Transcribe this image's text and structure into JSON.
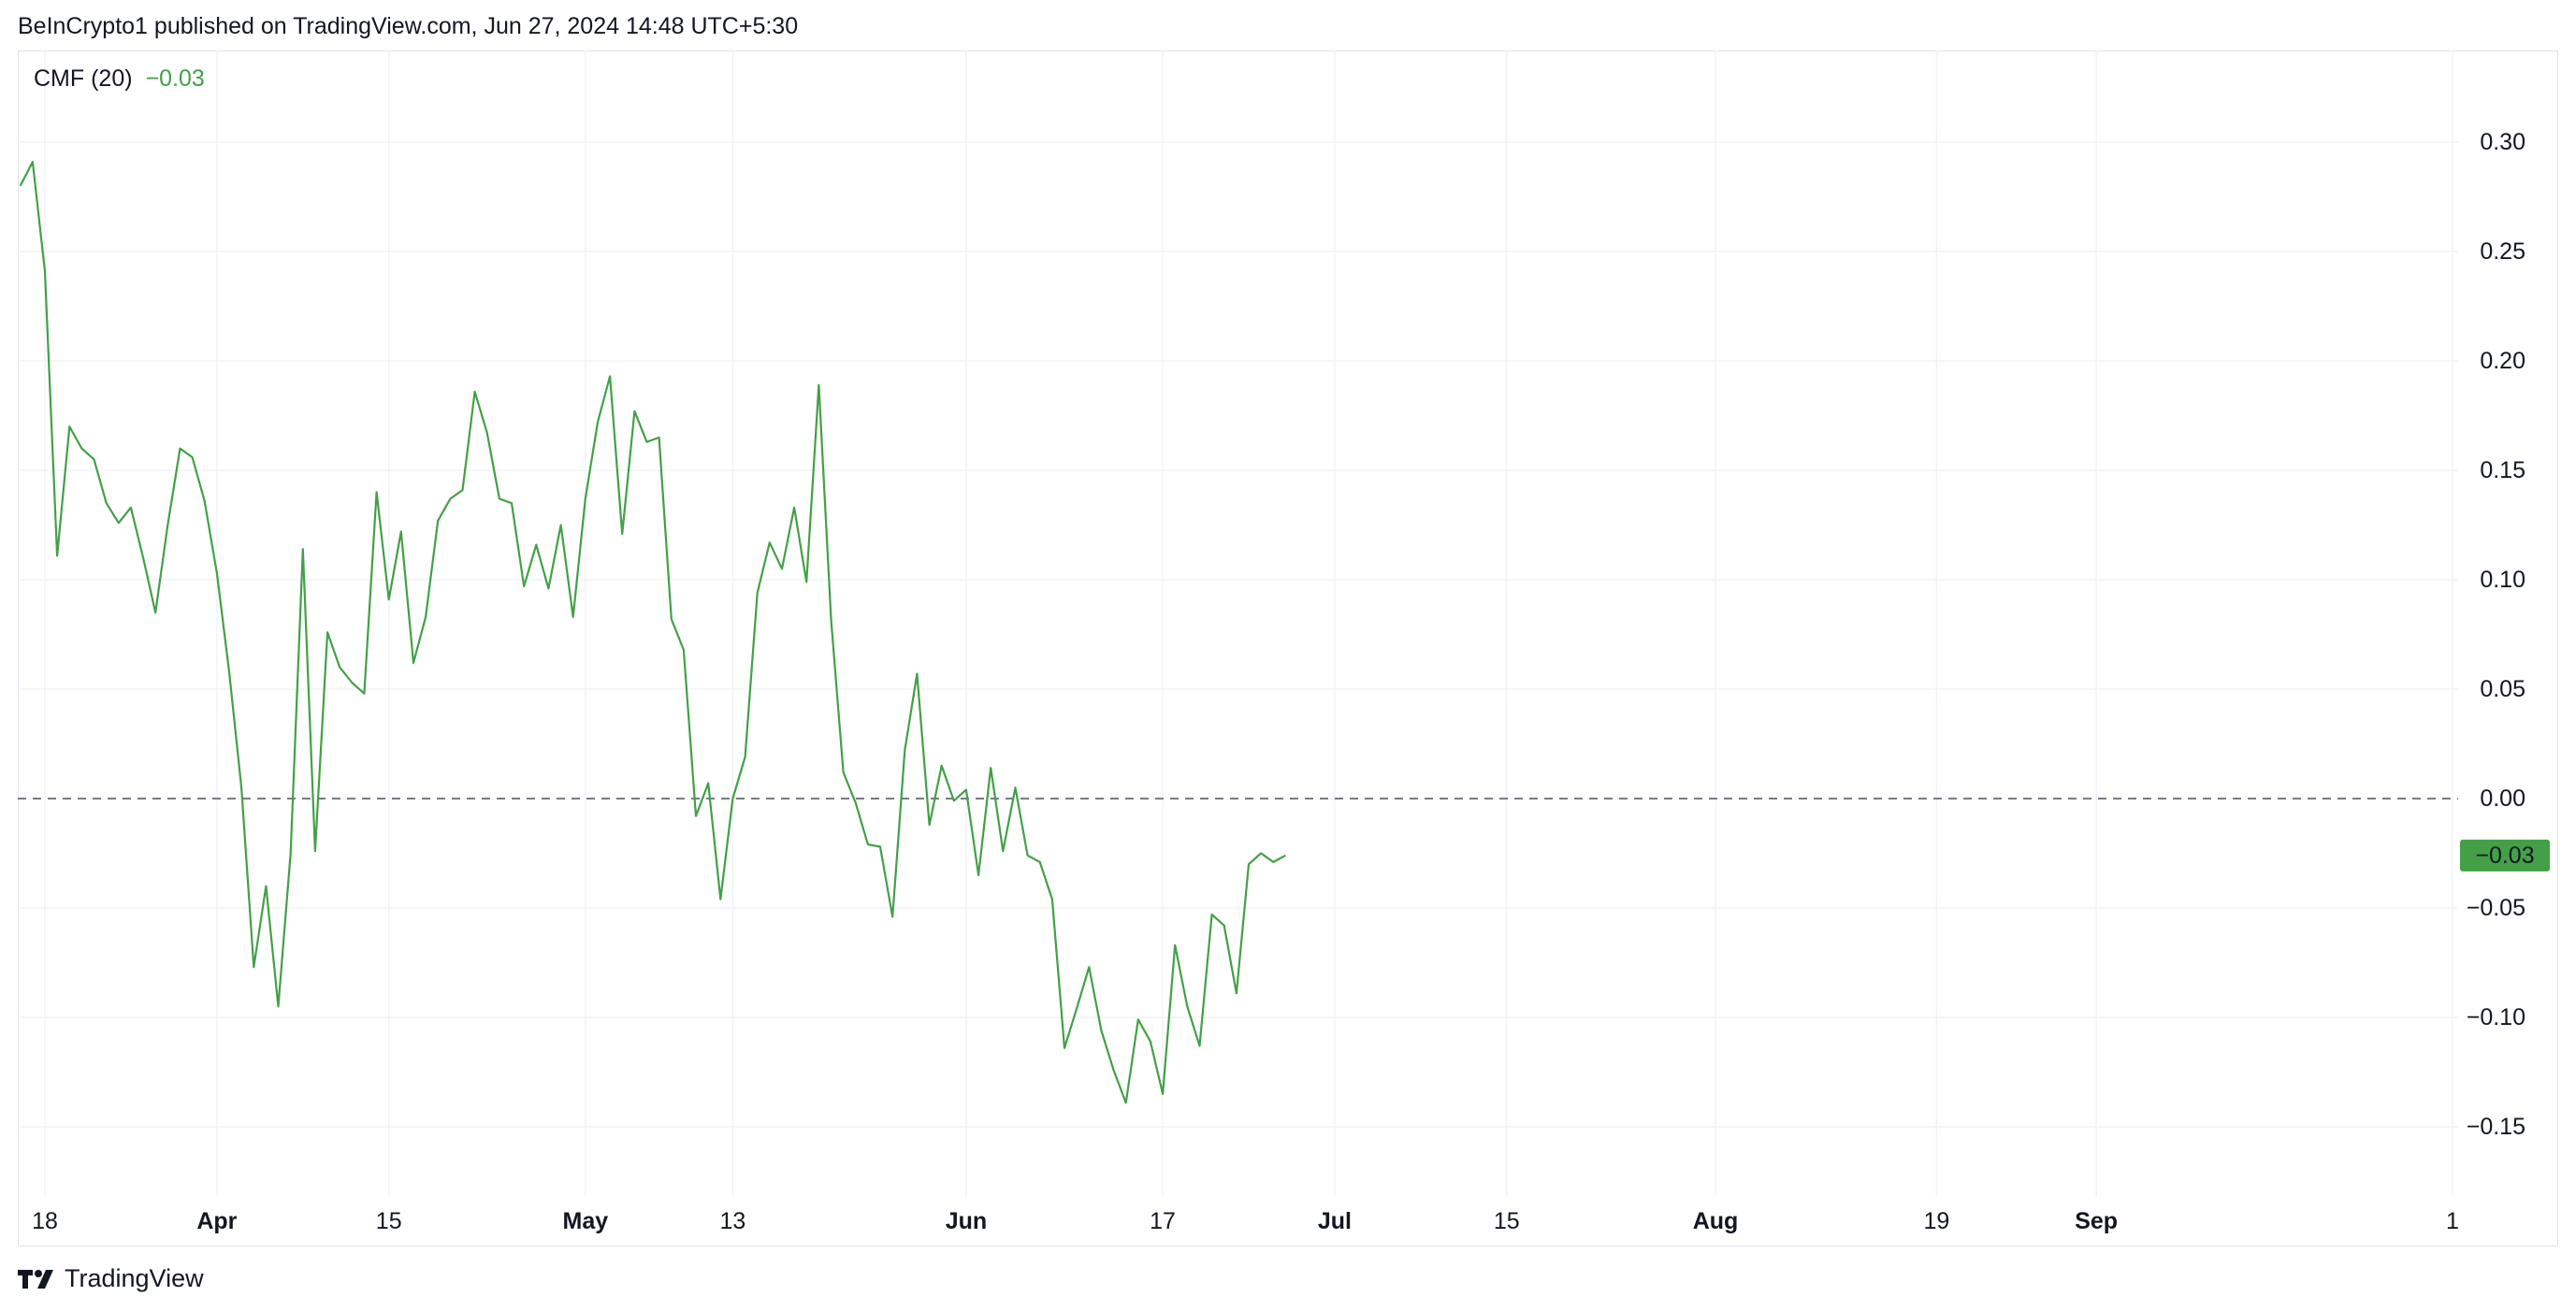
{
  "header": {
    "published": "BeInCrypto1 published on TradingView.com, Jun 27, 2024 14:48 UTC+5:30"
  },
  "indicator": {
    "name": "CMF (20)",
    "value": "−0.03",
    "current_label": "−0.03"
  },
  "footer": {
    "brand": "TradingView"
  },
  "colors": {
    "line": "#43a047",
    "grid": "#f0f3fa",
    "zero_line": "#787b86",
    "badge": "#43a047"
  },
  "chart_data": {
    "type": "line",
    "title": "",
    "xlabel": "",
    "ylabel": "",
    "ylim": [
      -0.18,
      0.33
    ],
    "grid": true,
    "reference_line": 0.0,
    "y_ticks": [
      {
        "value": 0.3,
        "label": "0.30"
      },
      {
        "value": 0.25,
        "label": "0.25"
      },
      {
        "value": 0.2,
        "label": "0.20"
      },
      {
        "value": 0.15,
        "label": "0.15"
      },
      {
        "value": 0.1,
        "label": "0.10"
      },
      {
        "value": 0.05,
        "label": "0.05"
      },
      {
        "value": 0.0,
        "label": "0.00"
      },
      {
        "value": -0.05,
        "label": "−0.05"
      },
      {
        "value": -0.1,
        "label": "−0.10"
      },
      {
        "value": -0.15,
        "label": "−0.15"
      }
    ],
    "x_ticks": [
      {
        "date": "2024-03-18",
        "label": "18",
        "bold": false
      },
      {
        "date": "2024-04-01",
        "label": "Apr",
        "bold": true
      },
      {
        "date": "2024-04-15",
        "label": "15",
        "bold": false
      },
      {
        "date": "2024-05-01",
        "label": "May",
        "bold": true
      },
      {
        "date": "2024-05-13",
        "label": "13",
        "bold": false
      },
      {
        "date": "2024-06-01",
        "label": "Jun",
        "bold": true
      },
      {
        "date": "2024-06-17",
        "label": "17",
        "bold": false
      },
      {
        "date": "2024-07-01",
        "label": "Jul",
        "bold": true
      },
      {
        "date": "2024-07-15",
        "label": "15",
        "bold": false
      },
      {
        "date": "2024-08-01",
        "label": "Aug",
        "bold": true
      },
      {
        "date": "2024-08-19",
        "label": "19",
        "bold": false
      },
      {
        "date": "2024-09-01",
        "label": "Sep",
        "bold": true
      },
      {
        "date": "2024-09-30",
        "label": "1",
        "bold": false
      }
    ],
    "x_range": [
      "2024-03-16",
      "2024-10-01"
    ],
    "series": [
      {
        "values": [
          [
            "2024-03-16",
            0.28
          ],
          [
            "2024-03-17",
            0.291
          ],
          [
            "2024-03-18",
            0.241
          ],
          [
            "2024-03-19",
            0.111
          ],
          [
            "2024-03-20",
            0.17
          ],
          [
            "2024-03-21",
            0.16
          ],
          [
            "2024-03-22",
            0.155
          ],
          [
            "2024-03-23",
            0.135
          ],
          [
            "2024-03-24",
            0.126
          ],
          [
            "2024-03-25",
            0.133
          ],
          [
            "2024-03-26",
            0.11
          ],
          [
            "2024-03-27",
            0.085
          ],
          [
            "2024-03-28",
            0.125
          ],
          [
            "2024-03-29",
            0.16
          ],
          [
            "2024-03-30",
            0.156
          ],
          [
            "2024-03-31",
            0.136
          ],
          [
            "2024-04-01",
            0.103
          ],
          [
            "2024-04-02",
            0.058
          ],
          [
            "2024-04-03",
            0.005
          ],
          [
            "2024-04-04",
            -0.077
          ],
          [
            "2024-04-05",
            -0.04
          ],
          [
            "2024-04-06",
            -0.095
          ],
          [
            "2024-04-07",
            -0.025
          ],
          [
            "2024-04-08",
            0.114
          ],
          [
            "2024-04-09",
            -0.024
          ],
          [
            "2024-04-10",
            0.076
          ],
          [
            "2024-04-11",
            0.06
          ],
          [
            "2024-04-12",
            0.053
          ],
          [
            "2024-04-13",
            0.048
          ],
          [
            "2024-04-14",
            0.14
          ],
          [
            "2024-04-15",
            0.091
          ],
          [
            "2024-04-16",
            0.122
          ],
          [
            "2024-04-17",
            0.062
          ],
          [
            "2024-04-18",
            0.083
          ],
          [
            "2024-04-19",
            0.127
          ],
          [
            "2024-04-20",
            0.137
          ],
          [
            "2024-04-21",
            0.141
          ],
          [
            "2024-04-22",
            0.186
          ],
          [
            "2024-04-23",
            0.167
          ],
          [
            "2024-04-24",
            0.137
          ],
          [
            "2024-04-25",
            0.135
          ],
          [
            "2024-04-26",
            0.097
          ],
          [
            "2024-04-27",
            0.116
          ],
          [
            "2024-04-28",
            0.096
          ],
          [
            "2024-04-29",
            0.125
          ],
          [
            "2024-04-30",
            0.083
          ],
          [
            "2024-05-01",
            0.137
          ],
          [
            "2024-05-02",
            0.172
          ],
          [
            "2024-05-03",
            0.193
          ],
          [
            "2024-05-04",
            0.121
          ],
          [
            "2024-05-05",
            0.177
          ],
          [
            "2024-05-06",
            0.163
          ],
          [
            "2024-05-07",
            0.165
          ],
          [
            "2024-05-08",
            0.082
          ],
          [
            "2024-05-09",
            0.068
          ],
          [
            "2024-05-10",
            -0.008
          ],
          [
            "2024-05-11",
            0.007
          ],
          [
            "2024-05-12",
            -0.046
          ],
          [
            "2024-05-13",
            0.0
          ],
          [
            "2024-05-14",
            0.019
          ],
          [
            "2024-05-15",
            0.094
          ],
          [
            "2024-05-16",
            0.117
          ],
          [
            "2024-05-17",
            0.105
          ],
          [
            "2024-05-18",
            0.133
          ],
          [
            "2024-05-19",
            0.099
          ],
          [
            "2024-05-20",
            0.189
          ],
          [
            "2024-05-21",
            0.082
          ],
          [
            "2024-05-22",
            0.012
          ],
          [
            "2024-05-23",
            -0.002
          ],
          [
            "2024-05-24",
            -0.021
          ],
          [
            "2024-05-25",
            -0.022
          ],
          [
            "2024-05-26",
            -0.054
          ],
          [
            "2024-05-27",
            0.022
          ],
          [
            "2024-05-28",
            0.057
          ],
          [
            "2024-05-29",
            -0.012
          ],
          [
            "2024-05-30",
            0.015
          ],
          [
            "2024-05-31",
            -0.001
          ],
          [
            "2024-06-01",
            0.004
          ],
          [
            "2024-06-02",
            -0.035
          ],
          [
            "2024-06-03",
            0.014
          ],
          [
            "2024-06-04",
            -0.024
          ],
          [
            "2024-06-05",
            0.005
          ],
          [
            "2024-06-06",
            -0.026
          ],
          [
            "2024-06-07",
            -0.029
          ],
          [
            "2024-06-08",
            -0.046
          ],
          [
            "2024-06-09",
            -0.114
          ],
          [
            "2024-06-10",
            -0.096
          ],
          [
            "2024-06-11",
            -0.077
          ],
          [
            "2024-06-12",
            -0.106
          ],
          [
            "2024-06-13",
            -0.124
          ],
          [
            "2024-06-14",
            -0.139
          ],
          [
            "2024-06-15",
            -0.101
          ],
          [
            "2024-06-16",
            -0.111
          ],
          [
            "2024-06-17",
            -0.135
          ],
          [
            "2024-06-18",
            -0.067
          ],
          [
            "2024-06-19",
            -0.095
          ],
          [
            "2024-06-20",
            -0.113
          ],
          [
            "2024-06-21",
            -0.053
          ],
          [
            "2024-06-22",
            -0.058
          ],
          [
            "2024-06-23",
            -0.089
          ],
          [
            "2024-06-24",
            -0.03
          ],
          [
            "2024-06-25",
            -0.025
          ],
          [
            "2024-06-26",
            -0.029
          ],
          [
            "2024-06-27",
            -0.026
          ]
        ]
      }
    ]
  }
}
